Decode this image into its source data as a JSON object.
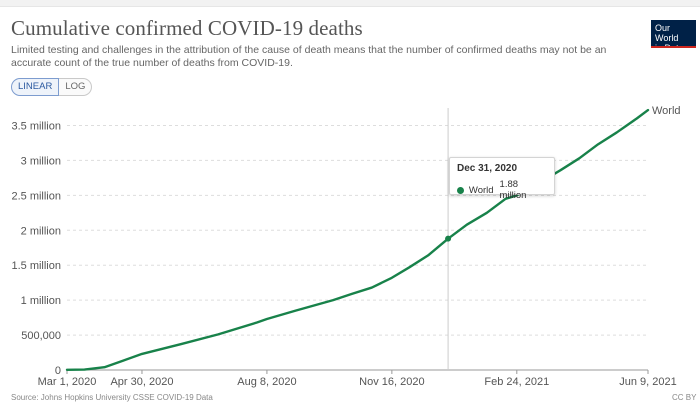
{
  "header": {
    "title": "Cumulative confirmed COVID-19 deaths",
    "subtitle": "Limited testing and challenges in the attribution of the cause of death means that the number of confirmed deaths may not be an accurate count of the true number of deaths from COVID-19."
  },
  "logo": {
    "line1": "Our World",
    "line2": "in Data",
    "bg_color": "#002147",
    "accent_color": "#ce261e"
  },
  "scale_toggle": {
    "linear_label": "LINEAR",
    "log_label": "LOG",
    "selected": "LINEAR"
  },
  "tooltip": {
    "date": "Dec 31, 2020",
    "series": "World",
    "value": "1.88 million"
  },
  "footer": {
    "left_text": "Source: Johns Hopkins University CSSE COVID-19 Data",
    "right_text": "CC BY"
  },
  "chart_data": {
    "type": "line",
    "title": "Cumulative confirmed COVID-19 deaths",
    "xlabel": "",
    "ylabel": "",
    "ylim": [
      0,
      3750000
    ],
    "xlim": [
      "2020-03-01",
      "2021-06-09"
    ],
    "y_ticks": [
      0,
      500000,
      1000000,
      1500000,
      2000000,
      2500000,
      3000000,
      3500000
    ],
    "y_tick_labels": [
      "0",
      "500,000",
      "1 million",
      "1.5 million",
      "2 million",
      "2.5 million",
      "3 million",
      "3.5 million"
    ],
    "x_tick_dates": [
      "2020-03-01",
      "2020-04-30",
      "2020-08-08",
      "2020-11-16",
      "2021-02-24",
      "2021-06-09"
    ],
    "x_tick_labels": [
      "Mar 1, 2020",
      "Apr 30, 2020",
      "Aug 8, 2020",
      "Nov 16, 2020",
      "Feb 24, 2021",
      "Jun 9, 2021"
    ],
    "grid": true,
    "series": [
      {
        "name": "World",
        "color": "#18824a",
        "x": [
          "2020-03-01",
          "2020-03-15",
          "2020-03-31",
          "2020-04-15",
          "2020-04-30",
          "2020-05-31",
          "2020-06-30",
          "2020-07-31",
          "2020-08-08",
          "2020-08-31",
          "2020-09-30",
          "2020-10-15",
          "2020-10-31",
          "2020-11-16",
          "2020-11-30",
          "2020-12-15",
          "2020-12-31",
          "2021-01-15",
          "2021-01-31",
          "2021-02-15",
          "2021-02-24",
          "2021-03-15",
          "2021-03-31",
          "2021-04-15",
          "2021-04-30",
          "2021-05-15",
          "2021-05-31",
          "2021-06-09"
        ],
        "values": [
          3000,
          6000,
          40000,
          135000,
          230000,
          370000,
          510000,
          680000,
          730000,
          850000,
          1000000,
          1090000,
          1180000,
          1320000,
          1470000,
          1640000,
          1880000,
          2080000,
          2250000,
          2450000,
          2500000,
          2690000,
          2860000,
          3030000,
          3230000,
          3400000,
          3600000,
          3720000
        ]
      }
    ]
  }
}
